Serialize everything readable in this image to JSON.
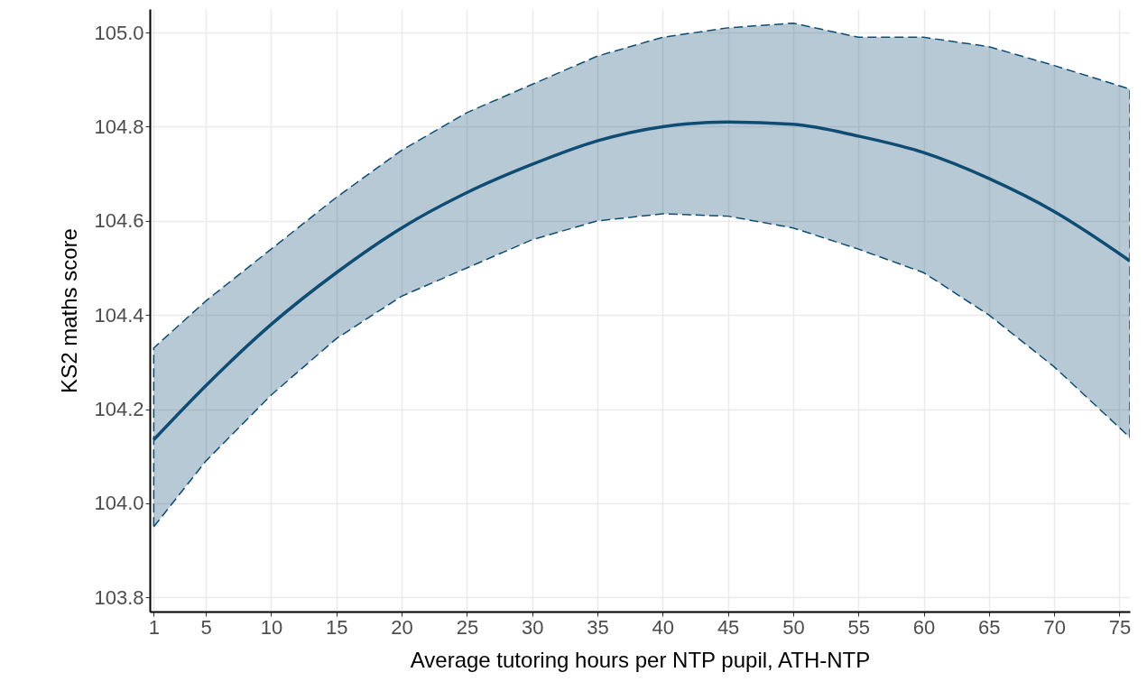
{
  "chart_data": {
    "type": "line",
    "xlabel": "Average tutoring hours per NTP pupil, ATH-NTP",
    "ylabel": "KS2 maths score",
    "x": [
      1,
      5,
      10,
      15,
      20,
      25,
      30,
      35,
      40,
      45,
      50,
      55,
      60,
      65,
      70,
      75.8
    ],
    "series": [
      {
        "color": "#0f4c73",
        "values": [
          104.135,
          104.25,
          104.38,
          104.49,
          104.585,
          104.66,
          104.72,
          104.77,
          104.8,
          104.81,
          104.805,
          104.78,
          104.745,
          104.69,
          104.62,
          104.515
        ],
        "lower": [
          103.95,
          104.09,
          104.23,
          104.35,
          104.44,
          104.5,
          104.56,
          104.6,
          104.615,
          104.61,
          104.585,
          104.54,
          104.49,
          104.4,
          104.29,
          104.14
        ],
        "upper": [
          104.33,
          104.43,
          104.54,
          104.65,
          104.75,
          104.83,
          104.89,
          104.95,
          104.99,
          105.01,
          105.02,
          104.99,
          104.99,
          104.97,
          104.93,
          104.88
        ]
      }
    ],
    "xlim": [
      0.7,
      75.8
    ],
    "xticks": [
      1,
      5,
      10,
      15,
      20,
      25,
      30,
      35,
      40,
      45,
      50,
      55,
      60,
      65,
      70,
      75
    ],
    "ylim": [
      103.77,
      105.05
    ],
    "yticks": [
      103.8,
      {
        "value": 104,
        "label": "104.0"
      },
      104.2,
      104.4,
      104.6,
      104.8,
      {
        "value": 105,
        "label": "105.0"
      }
    ],
    "grid": true,
    "marker": "none",
    "line_style": "solid"
  }
}
